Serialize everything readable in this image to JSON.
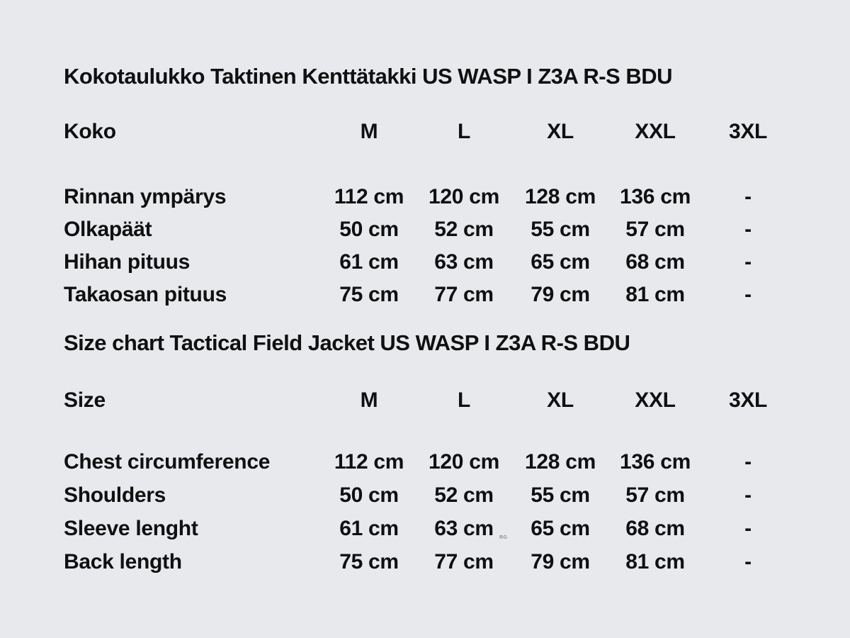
{
  "page": {
    "background_color": "#e8e9ed",
    "text_color": "#101010",
    "watermark": "RG"
  },
  "tables": [
    {
      "title": "Kokotaulukko Taktinen Kenttätakki US WASP I Z3A R-S BDU",
      "header": {
        "label": "Koko",
        "sizes": [
          "M",
          "L",
          "XL",
          "XXL",
          "3XL"
        ]
      },
      "rows": [
        {
          "label": "Rinnan ympärys",
          "values": [
            "112 cm",
            "120 cm",
            "128 cm",
            "136 cm",
            "-"
          ]
        },
        {
          "label": "Olkapäät",
          "values": [
            "50 cm",
            "52 cm",
            "55 cm",
            "57 cm",
            "-"
          ]
        },
        {
          "label": "Hihan pituus",
          "values": [
            "61 cm",
            "63 cm",
            "65 cm",
            "68 cm",
            "-"
          ]
        },
        {
          "label": "Takaosan pituus",
          "values": [
            "75 cm",
            "77 cm",
            "79 cm",
            "81 cm",
            "-"
          ]
        }
      ]
    },
    {
      "title": "Size chart Tactical Field Jacket US WASP I Z3A R-S BDU",
      "header": {
        "label": "Size",
        "sizes": [
          "M",
          "L",
          "XL",
          "XXL",
          "3XL"
        ]
      },
      "rows": [
        {
          "label": "Chest circumference",
          "values": [
            "112 cm",
            "120 cm",
            "128 cm",
            "136 cm",
            "-"
          ]
        },
        {
          "label": "Shoulders",
          "values": [
            "50 cm",
            "52 cm",
            "55 cm",
            "57 cm",
            "-"
          ]
        },
        {
          "label": "Sleeve lenght",
          "values": [
            "61 cm",
            "63 cm",
            "65 cm",
            "68 cm",
            "-"
          ]
        },
        {
          "label": "Back length",
          "values": [
            "75 cm",
            "77 cm",
            "79 cm",
            "81 cm",
            "-"
          ]
        }
      ]
    }
  ]
}
